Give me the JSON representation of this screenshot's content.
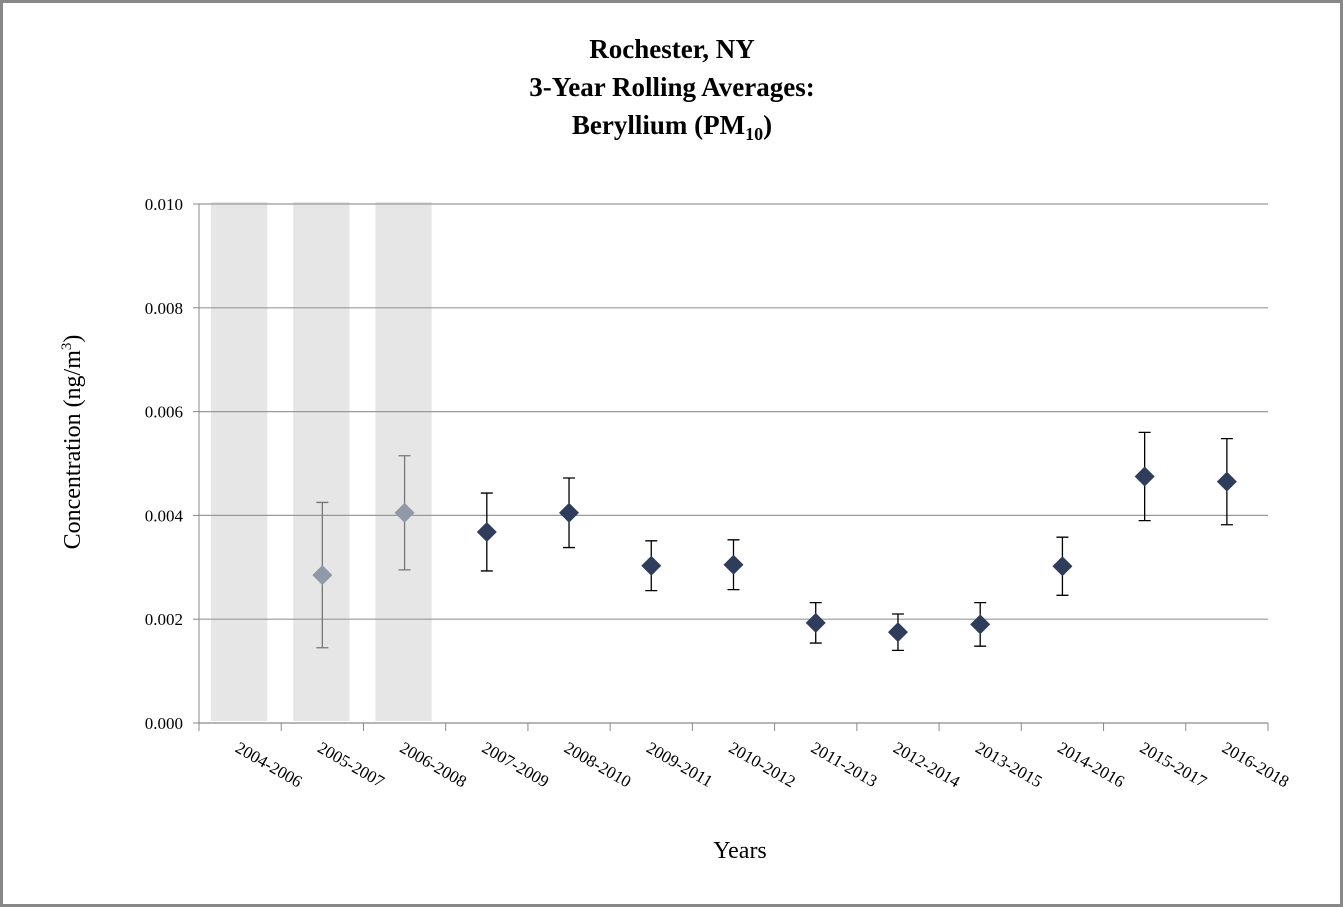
{
  "chart_data": {
    "type": "scatter",
    "title": [
      "Rochester, NY",
      "3-Year Rolling Averages:"
    ],
    "title_last_line": {
      "text": "Beryllium (PM",
      "subscript": "10",
      "suffix": ")"
    },
    "y_label": {
      "text": "Concentration (ng/m",
      "superscript": "3",
      "suffix": ")"
    },
    "x_label": "Years",
    "categories": [
      "2004-2006",
      "2005-2007",
      "2006-2008",
      "2007-2009",
      "2008-2010",
      "2009-2011",
      "2010-2012",
      "2011-2013",
      "2012-2014",
      "2013-2015",
      "2014-2016",
      "2015-2017",
      "2016-2018"
    ],
    "values": [
      null,
      0.00285,
      0.00405,
      0.00368,
      0.00405,
      0.00303,
      0.00305,
      0.00193,
      0.00175,
      0.0019,
      0.00302,
      0.00475,
      0.00465
    ],
    "errors": [
      null,
      0.0014,
      0.0011,
      0.00075,
      0.00067,
      0.00048,
      0.00048,
      0.00039,
      0.00035,
      0.00042,
      0.00056,
      0.00085,
      0.00083
    ],
    "shaded": [
      true,
      true,
      true,
      false,
      false,
      false,
      false,
      false,
      false,
      false,
      false,
      false,
      false
    ],
    "color": "#2e3d5c",
    "shaded_color": "#8f99a8",
    "shade_fill": "#e6e6e6",
    "ylim": [
      0,
      0.01
    ],
    "yticks": [
      {
        "value": 0,
        "label": "0.000"
      },
      {
        "value": 0.002,
        "label": "0.002"
      },
      {
        "value": 0.004,
        "label": "0.004"
      },
      {
        "value": 0.006,
        "label": "0.006"
      },
      {
        "value": 0.008,
        "label": "0.008"
      },
      {
        "value": 0.01,
        "label": "0.010"
      }
    ],
    "grid": true
  }
}
